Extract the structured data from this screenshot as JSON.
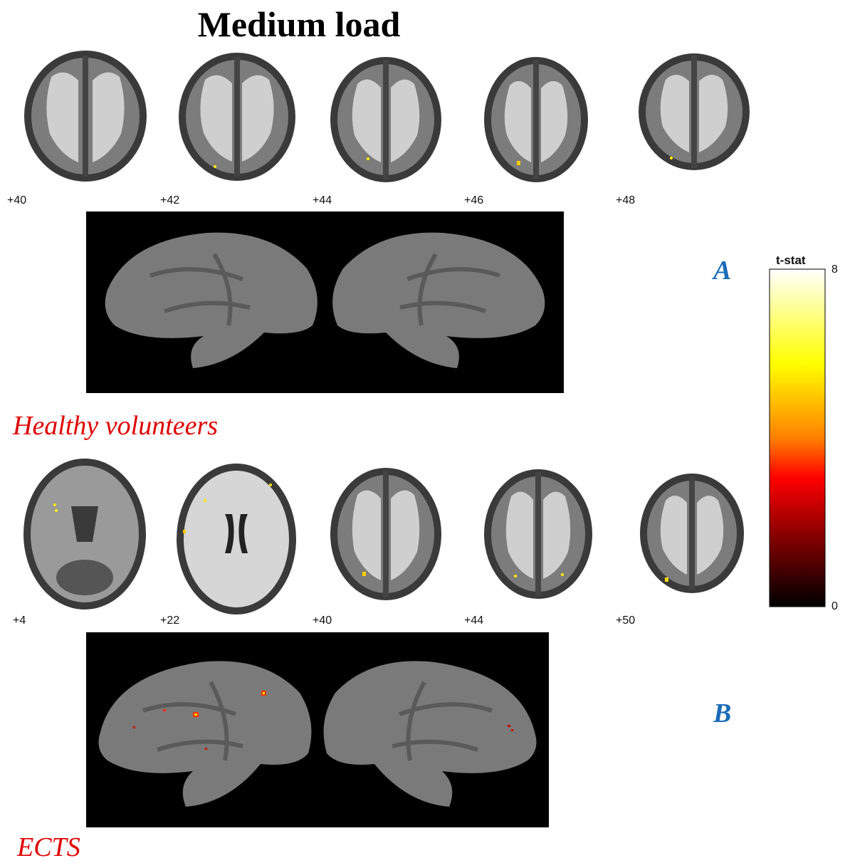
{
  "figure_title": "Medium load",
  "panel_a": {
    "letter": "A",
    "group": "Healthy volunteers",
    "slices": [
      {
        "label": "+40",
        "activation": false
      },
      {
        "label": "+42",
        "activation": true
      },
      {
        "label": "+44",
        "activation": true
      },
      {
        "label": "+46",
        "activation": true
      },
      {
        "label": "+48",
        "activation": true
      }
    ],
    "surface_activation": false
  },
  "panel_b": {
    "letter": "B",
    "group": "ECTS",
    "slices": [
      {
        "label": "+4",
        "activation": true
      },
      {
        "label": "+22",
        "activation": true
      },
      {
        "label": "+40",
        "activation": true
      },
      {
        "label": "+44",
        "activation": true
      },
      {
        "label": "+50",
        "activation": true
      }
    ],
    "surface_activation": true
  },
  "colorbar": {
    "title": "t-stat",
    "max_label": "8",
    "min_label": "0",
    "colors": [
      "#ffffff",
      "#ffff00",
      "#ff8000",
      "#ff0000",
      "#000000"
    ]
  }
}
